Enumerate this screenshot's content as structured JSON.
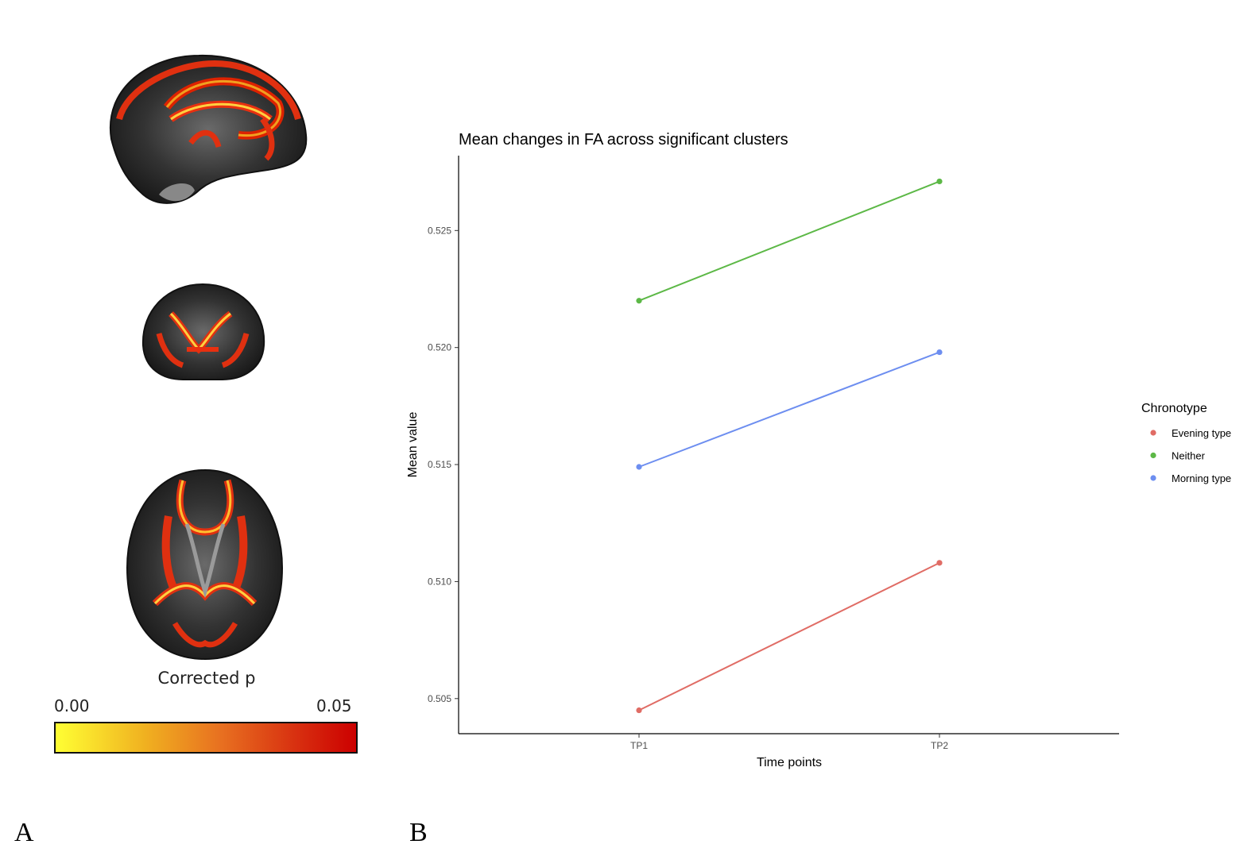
{
  "panel_labels": {
    "a": "A",
    "b": "B"
  },
  "brain_panel": {
    "views": [
      "sagittal",
      "coronal",
      "axial"
    ],
    "colorbar": {
      "title": "Corrected p",
      "min_label": "0.00",
      "max_label": "0.05",
      "colors": [
        "#ffff33",
        "#cc0000"
      ]
    }
  },
  "chart_data": {
    "type": "line",
    "title": "Mean changes in FA across significant clusters",
    "xlabel": "Time points",
    "ylabel": "Mean value",
    "categories": [
      "TP1",
      "TP2"
    ],
    "ylim": [
      0.5035,
      0.5282
    ],
    "yticks": [
      0.505,
      0.51,
      0.515,
      0.52,
      0.525
    ],
    "ytick_labels": [
      "0.505",
      "0.510",
      "0.515",
      "0.520",
      "0.525"
    ],
    "grid": false,
    "legend": {
      "title": "Chronotype",
      "position": "right",
      "entries": [
        "Evening type",
        "Neither",
        "Morning type"
      ]
    },
    "series": [
      {
        "name": "Evening type",
        "color": "#e06c65",
        "values": [
          0.5045,
          0.5108
        ]
      },
      {
        "name": "Neither",
        "color": "#5cb846",
        "values": [
          0.522,
          0.5271
        ]
      },
      {
        "name": "Morning type",
        "color": "#6d8ef0",
        "values": [
          0.5149,
          0.5198
        ]
      }
    ]
  }
}
